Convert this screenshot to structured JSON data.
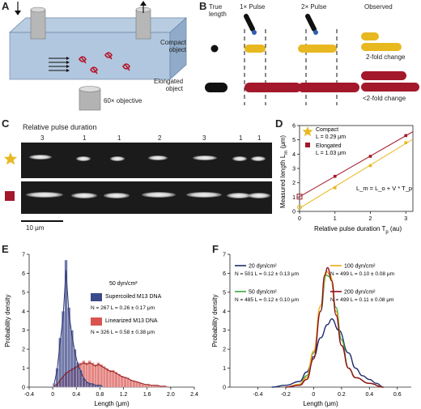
{
  "panels": {
    "A": {
      "letter": "A",
      "objective_label": "60× objective"
    },
    "B": {
      "letter": "B",
      "col_true_length": "True\nlength",
      "col_1x": "1× Pulse",
      "col_2x": "2× Pulse",
      "col_observed": "Observed",
      "row_compact": "Compact\nobject",
      "row_elongated": "Elongated\nobject",
      "compact_change": "2-fold change",
      "elongated_change": "<2-fold change"
    },
    "C": {
      "letter": "C",
      "header": "Relative pulse duration",
      "durations": [
        "3",
        "1",
        "1",
        "2",
        "3",
        "1",
        "1"
      ],
      "scale_bar": "10 μm"
    }
  },
  "colors": {
    "compact": "#e8b820",
    "elongated": "#a3182a",
    "supercoiled": "#3d4a8a",
    "linearized": "#d9534f",
    "navy": "#1f2e6e",
    "orange": "#f0a818",
    "green": "#3aa83a",
    "darkred": "#8b1020"
  },
  "chart_data": [
    {
      "id": "D",
      "letter": "D",
      "type": "scatter",
      "xlabel": "Relative pulse duration T_p (au)",
      "ylabel": "Measured length L_m (μm)",
      "xlim": [
        0,
        3.2
      ],
      "ylim": [
        0,
        6
      ],
      "xticks": [
        "0",
        "1",
        "2",
        "3"
      ],
      "yticks": [
        "0",
        "1",
        "2",
        "3",
        "4",
        "5",
        "6"
      ],
      "formula": "L_m = L_o + V * T_p",
      "series": [
        {
          "name": "Compact",
          "detail": "L = 0.29 μm",
          "marker": "star",
          "x": [
            0,
            1,
            2,
            3
          ],
          "y": [
            0.29,
            1.65,
            3.2,
            4.8
          ]
        },
        {
          "name": "Elongated",
          "detail": "L = 1.03 μm",
          "marker": "square",
          "x": [
            0,
            1,
            2,
            3
          ],
          "y": [
            1.03,
            2.45,
            3.85,
            5.3
          ]
        }
      ]
    },
    {
      "id": "E",
      "letter": "E",
      "type": "bar",
      "xlabel": "Length (μm)",
      "ylabel": "Probability density",
      "xlim": [
        -0.4,
        2.4
      ],
      "ylim": [
        0,
        7
      ],
      "xticks": [
        "-0.4",
        "0",
        "0.4",
        "0.8",
        "1.2",
        "1.6",
        "2.0",
        "2.4"
      ],
      "yticks": [
        "0",
        "1",
        "2",
        "3",
        "4",
        "5",
        "6",
        "7"
      ],
      "legend_title": "50 dyn/cm²",
      "series": [
        {
          "name": "Supercoiled M13 DNA",
          "stats": "N = 267 L = 0.26 ± 0.17 μm",
          "bins": [
            0.0,
            0.05,
            0.1,
            0.15,
            0.2,
            0.25,
            0.3,
            0.35,
            0.4,
            0.45,
            0.5,
            0.55,
            0.6,
            0.65,
            0.7,
            0.75,
            0.8
          ],
          "values": [
            0.2,
            1.0,
            2.6,
            4.0,
            6.7,
            4.2,
            3.0,
            2.0,
            1.3,
            0.9,
            0.5,
            0.3,
            0.2,
            0.2,
            0.1,
            0.1,
            0.1
          ]
        },
        {
          "name": "Linearized M13 DNA",
          "stats": "N = 326 L = 0.58 ± 0.38 μm",
          "bins": [
            0.0,
            0.05,
            0.1,
            0.15,
            0.2,
            0.25,
            0.3,
            0.35,
            0.4,
            0.45,
            0.5,
            0.55,
            0.6,
            0.65,
            0.7,
            0.75,
            0.8,
            0.85,
            0.9,
            0.95,
            1.0,
            1.05,
            1.1,
            1.15,
            1.2,
            1.25,
            1.3,
            1.35,
            1.4,
            1.45,
            1.5,
            1.55,
            1.6,
            1.65,
            1.7,
            1.75,
            1.8,
            1.85,
            1.9
          ],
          "values": [
            0.05,
            0.15,
            0.4,
            0.6,
            0.8,
            0.9,
            1.0,
            1.1,
            1.2,
            1.3,
            1.4,
            1.3,
            1.4,
            1.3,
            1.2,
            1.3,
            1.2,
            1.1,
            1.0,
            0.9,
            0.9,
            0.8,
            0.7,
            0.6,
            0.55,
            0.5,
            0.4,
            0.35,
            0.3,
            0.25,
            0.2,
            0.15,
            0.15,
            0.1,
            0.1,
            0.1,
            0.05,
            0.05,
            0.05
          ]
        }
      ]
    },
    {
      "id": "F",
      "letter": "F",
      "type": "line",
      "xlabel": "Length (μm)",
      "ylabel": "Probability density",
      "xlim": [
        -0.6,
        0.7
      ],
      "ylim": [
        0,
        7
      ],
      "xticks": [
        "-0.4",
        "-0.2",
        "0",
        "0.2",
        "0.4",
        "0.6"
      ],
      "yticks": [
        "0",
        "1",
        "2",
        "3",
        "4",
        "5",
        "6",
        "7"
      ],
      "series": [
        {
          "name": "20 dyn/cm²",
          "stats": "N = 501 L = 0.12 ± 0.13 μm",
          "color": "#1f2e6e",
          "x": [
            -0.3,
            -0.2,
            -0.1,
            -0.05,
            0.0,
            0.05,
            0.1,
            0.13,
            0.18,
            0.25,
            0.3,
            0.35,
            0.4,
            0.45,
            0.5
          ],
          "y": [
            0.0,
            0.1,
            0.3,
            0.8,
            1.6,
            2.6,
            3.3,
            3.6,
            3.0,
            1.8,
            1.0,
            0.6,
            0.4,
            0.2,
            0.0
          ]
        },
        {
          "name": "50 dyn/cm²",
          "stats": "N = 485 L = 0.12 ± 0.10 μm",
          "color": "#3aa83a",
          "x": [
            -0.2,
            -0.1,
            -0.05,
            0.0,
            0.05,
            0.09,
            0.12,
            0.16,
            0.2,
            0.25,
            0.3,
            0.4,
            0.5
          ],
          "y": [
            0.0,
            0.15,
            0.6,
            1.8,
            4.0,
            5.9,
            5.8,
            4.2,
            2.5,
            1.0,
            0.5,
            0.2,
            0.0
          ]
        },
        {
          "name": "100 dyn/cm²",
          "stats": "N = 499 L = 0.10 ± 0.08 μm",
          "color": "#f0a818",
          "x": [
            -0.2,
            -0.1,
            -0.05,
            0.0,
            0.05,
            0.09,
            0.12,
            0.16,
            0.2,
            0.25,
            0.3,
            0.4,
            0.5
          ],
          "y": [
            0.0,
            0.15,
            0.5,
            1.9,
            4.3,
            6.1,
            5.9,
            4.0,
            2.2,
            1.0,
            0.5,
            0.2,
            0.0
          ]
        },
        {
          "name": "200 dyn/cm²",
          "stats": "N = 499 L = 0.11 ± 0.08 μm",
          "color": "#8b1020",
          "x": [
            -0.2,
            -0.1,
            -0.05,
            0.0,
            0.05,
            0.08,
            0.1,
            0.13,
            0.16,
            0.2,
            0.25,
            0.3,
            0.4,
            0.5
          ],
          "y": [
            0.0,
            0.1,
            0.4,
            1.5,
            4.0,
            5.9,
            6.3,
            5.6,
            3.8,
            2.2,
            1.0,
            0.5,
            0.2,
            0.0
          ]
        }
      ]
    }
  ]
}
